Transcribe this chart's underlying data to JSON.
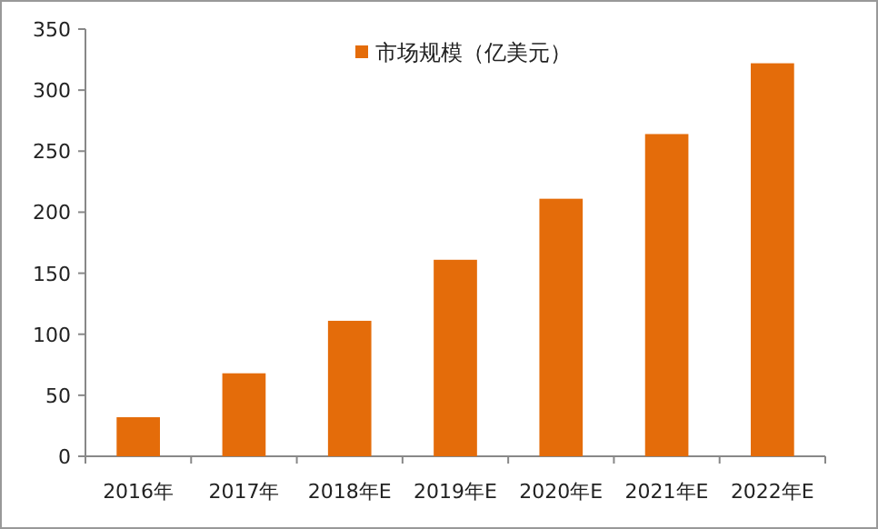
{
  "chart_data": {
    "type": "bar",
    "categories": [
      "2016年",
      "2017年",
      "2018年E",
      "2019年E",
      "2020年E",
      "2021年E",
      "2022年E"
    ],
    "series": [
      {
        "name": "市场规模（亿美元）",
        "color": "#e46c0a",
        "values": [
          32,
          68,
          111,
          161,
          211,
          264,
          322
        ]
      }
    ],
    "ylim": [
      0,
      350
    ],
    "yticks": [
      0,
      50,
      100,
      150,
      200,
      250,
      300,
      350
    ],
    "grid": false,
    "legend": "top"
  }
}
